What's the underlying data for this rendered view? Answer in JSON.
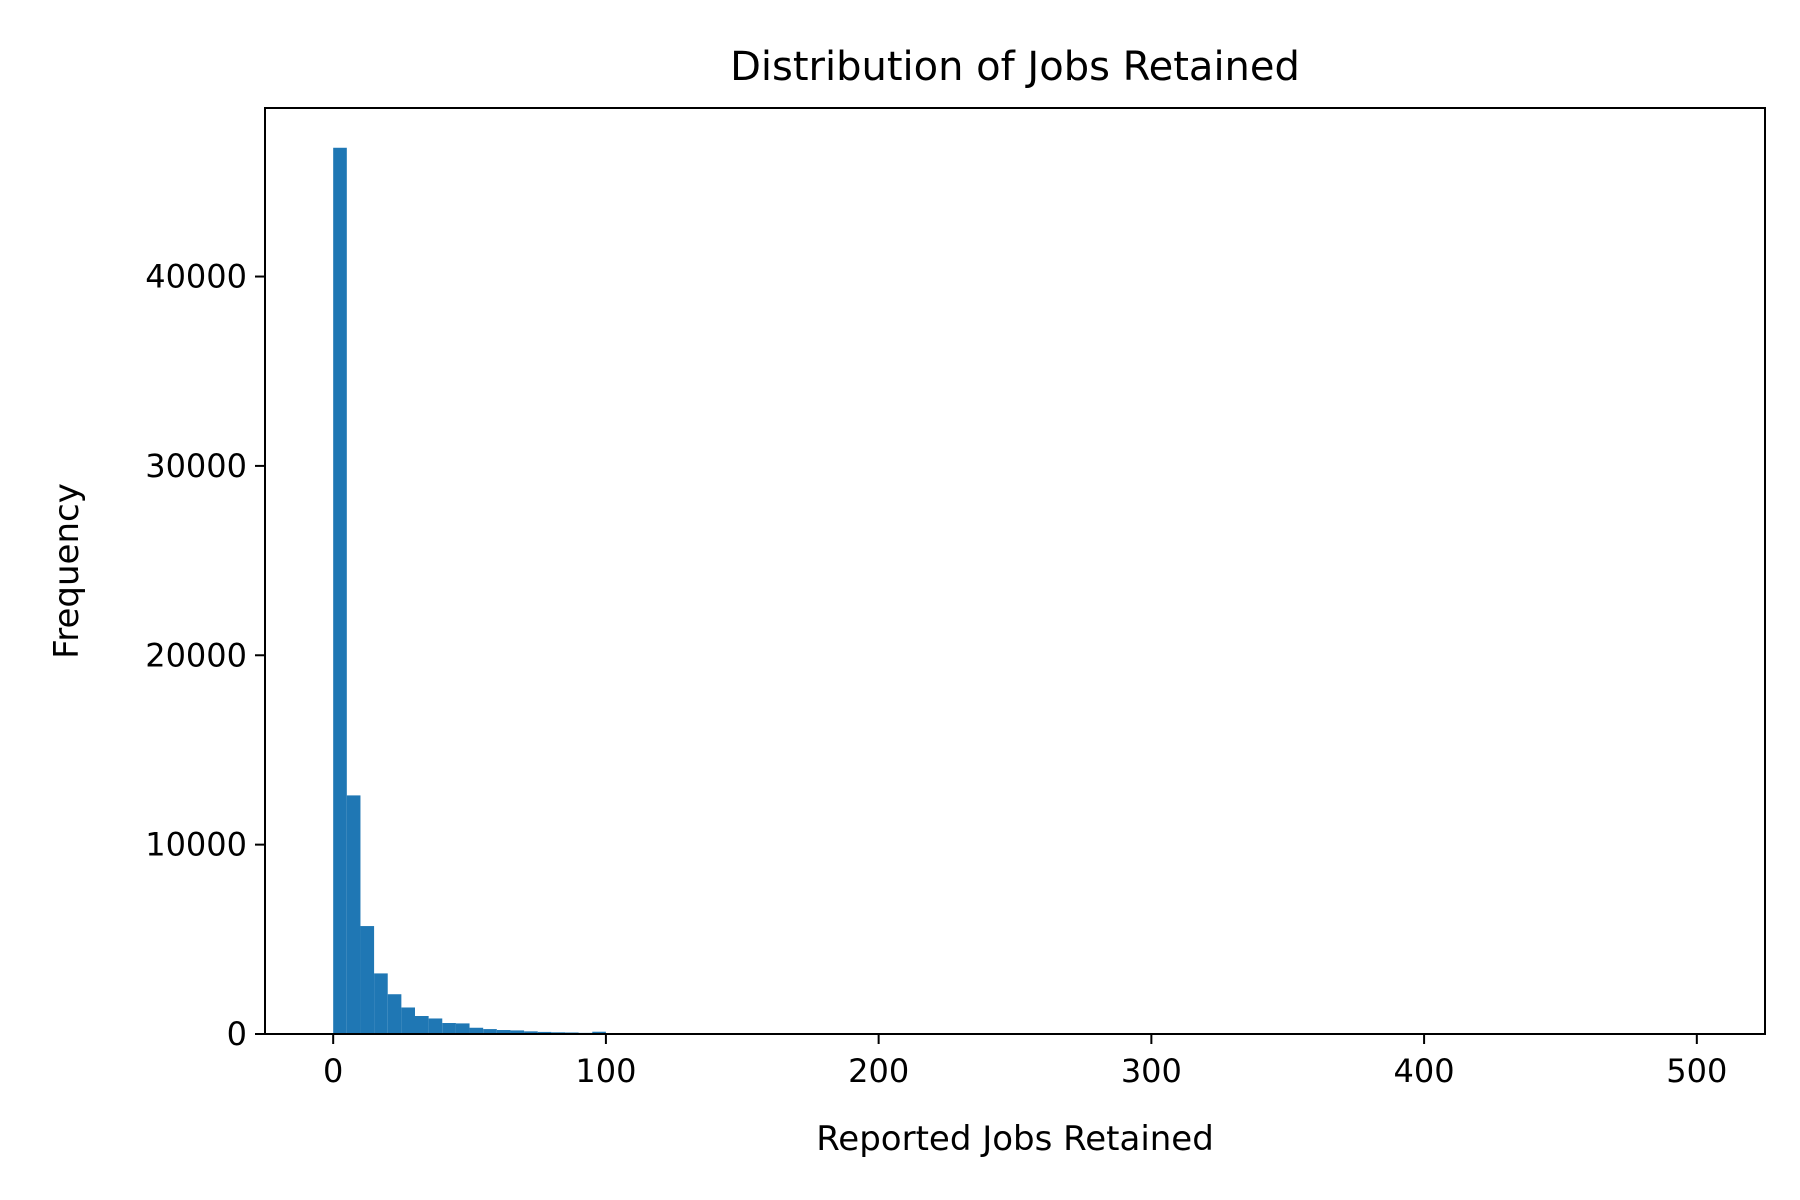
{
  "chart_data": {
    "type": "bar",
    "title": "Distribution of Jobs Retained",
    "xlabel": "Reported Jobs Retained",
    "ylabel": "Frequency",
    "xlim": [
      -25,
      525
    ],
    "ylim": [
      0,
      48900
    ],
    "xticks": [
      0,
      100,
      200,
      300,
      400,
      500
    ],
    "yticks": [
      0,
      10000,
      20000,
      30000,
      40000
    ],
    "bin_width": 5,
    "bins_start": 0,
    "bar_color": "#1f77b4",
    "grid": false,
    "values": [
      46800,
      12600,
      5700,
      3200,
      2100,
      1400,
      950,
      820,
      580,
      560,
      330,
      260,
      210,
      190,
      140,
      110,
      90,
      80,
      60,
      120,
      20,
      15,
      12,
      10,
      8,
      6,
      5,
      4,
      3,
      3,
      2,
      2,
      2,
      2,
      1,
      1,
      1,
      1,
      1,
      1,
      1,
      1,
      1,
      1,
      1,
      1,
      1,
      1,
      1,
      1,
      1,
      1,
      1,
      1,
      1,
      1,
      1,
      1,
      1,
      1,
      1,
      1,
      1,
      1,
      1,
      1,
      1,
      1,
      1,
      1,
      1,
      1,
      1,
      1,
      1,
      1,
      1,
      1,
      1,
      1,
      1,
      1,
      1,
      1,
      1,
      1,
      1,
      1,
      1,
      1,
      1,
      1,
      1,
      1,
      1,
      1,
      1,
      1,
      1,
      1
    ]
  }
}
